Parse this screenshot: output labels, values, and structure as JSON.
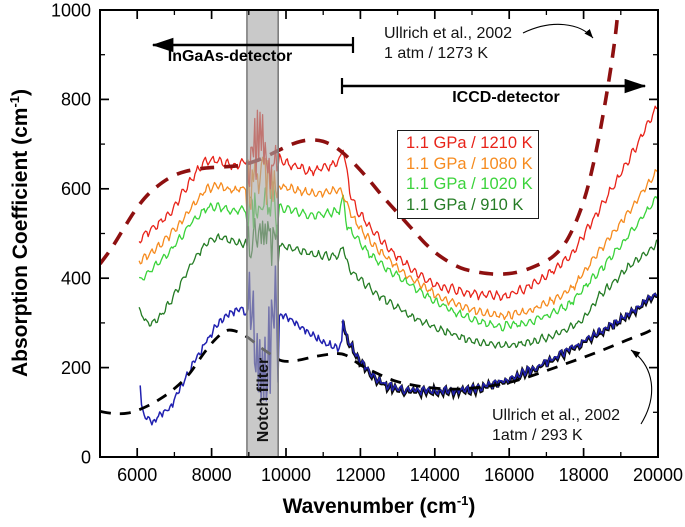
{
  "legend": {
    "items": [
      {
        "label": "1.1 GPa / 1210 K",
        "color": "#e82319"
      },
      {
        "label": "1.1 GPa / 1080 K",
        "color": "#f68b1f"
      },
      {
        "label": "1.1 GPa / 1020 K",
        "color": "#3bd33b"
      },
      {
        "label": "1.1 GPa / 910 K",
        "color": "#257c25"
      }
    ]
  },
  "annotations": {
    "ullrich_top": {
      "line1": "Ullrich et al., 2002",
      "line2": "1 atm / 1273 K"
    },
    "ullrich_bottom": {
      "line1": "Ullrich et al., 2002",
      "line2": "1atm / 293 K"
    }
  },
  "detectors": {
    "ingaas": "InGaAs-detector",
    "iccd": "ICCD-detector"
  },
  "chart_data": {
    "type": "line",
    "title": "",
    "x_axis": {
      "label": {
        "pre": "Wavenumber (cm",
        "sup": "-1",
        "post": ")"
      },
      "min": 5000,
      "max": 20000,
      "major_ticks": [
        6000,
        8000,
        10000,
        12000,
        14000,
        16000,
        18000,
        20000
      ],
      "minor_step": 1000
    },
    "y_axis": {
      "label": {
        "pre": "Absorption Coefficient (cm",
        "sup": "-1",
        "post": ")"
      },
      "min": 0,
      "max": 1000,
      "major_ticks": [
        0,
        200,
        400,
        600,
        800,
        1000
      ],
      "minor_step": 100
    },
    "notch_filter": {
      "label": "Notch filter",
      "from": 8950,
      "to": 9790,
      "band_color": "#a8a8a8"
    },
    "series": [
      {
        "name": "1.1 GPa / 910 K",
        "type": "noisy",
        "color": "#257c25",
        "width": 1.3,
        "fringe_amp": 7,
        "fringe_period": 7.2,
        "rand_amp": 4,
        "notch_amp": 45,
        "points": [
          [
            6050,
            332
          ],
          [
            6200,
            306
          ],
          [
            6400,
            298
          ],
          [
            6700,
            322
          ],
          [
            7000,
            362
          ],
          [
            7300,
            408
          ],
          [
            7600,
            452
          ],
          [
            7900,
            482
          ],
          [
            8200,
            492
          ],
          [
            8600,
            480
          ],
          [
            8950,
            478
          ],
          [
            9350,
            492
          ],
          [
            9790,
            476
          ],
          [
            10200,
            466
          ],
          [
            10700,
            454
          ],
          [
            11100,
            449
          ],
          [
            11440,
            452
          ],
          [
            11540,
            474
          ],
          [
            11650,
            428
          ],
          [
            11900,
            404
          ],
          [
            12300,
            374
          ],
          [
            12800,
            344
          ],
          [
            13400,
            314
          ],
          [
            14000,
            289
          ],
          [
            14700,
            267
          ],
          [
            15300,
            254
          ],
          [
            15900,
            249
          ],
          [
            16500,
            255
          ],
          [
            17200,
            272
          ],
          [
            17900,
            300
          ],
          [
            18440,
            362
          ],
          [
            19250,
            428
          ],
          [
            20000,
            478
          ]
        ]
      },
      {
        "name": "1.1 GPa / 1020 K",
        "type": "noisy",
        "color": "#3bd33b",
        "width": 1.3,
        "fringe_amp": 7,
        "fringe_period": 7.8,
        "rand_amp": 4,
        "notch_amp": 55,
        "points": [
          [
            6050,
            396
          ],
          [
            6350,
            418
          ],
          [
            6700,
            445
          ],
          [
            7100,
            484
          ],
          [
            7500,
            530
          ],
          [
            7850,
            556
          ],
          [
            8150,
            560
          ],
          [
            8550,
            550
          ],
          [
            8950,
            554
          ],
          [
            9350,
            572
          ],
          [
            9790,
            560
          ],
          [
            10150,
            552
          ],
          [
            10650,
            540
          ],
          [
            11050,
            544
          ],
          [
            11440,
            552
          ],
          [
            11530,
            582
          ],
          [
            11630,
            520
          ],
          [
            11850,
            492
          ],
          [
            12200,
            458
          ],
          [
            12700,
            422
          ],
          [
            13300,
            388
          ],
          [
            13900,
            352
          ],
          [
            14600,
            322
          ],
          [
            15200,
            302
          ],
          [
            15800,
            292
          ],
          [
            16400,
            298
          ],
          [
            17000,
            315
          ],
          [
            17600,
            340
          ],
          [
            18440,
            418
          ],
          [
            19250,
            500
          ],
          [
            20000,
            582
          ]
        ]
      },
      {
        "name": "1.1 GPa / 1080 K",
        "type": "noisy",
        "color": "#f68b1f",
        "width": 1.3,
        "fringe_amp": 7,
        "fringe_period": 7.0,
        "rand_amp": 4,
        "notch_amp": 55,
        "points": [
          [
            6050,
            436
          ],
          [
            6350,
            455
          ],
          [
            6700,
            480
          ],
          [
            7100,
            518
          ],
          [
            7500,
            562
          ],
          [
            7850,
            600
          ],
          [
            8150,
            606
          ],
          [
            8500,
            596
          ],
          [
            8950,
            602
          ],
          [
            9350,
            622
          ],
          [
            9790,
            606
          ],
          [
            10150,
            600
          ],
          [
            10650,
            590
          ],
          [
            11050,
            592
          ],
          [
            11440,
            597
          ],
          [
            11610,
            572
          ],
          [
            11800,
            536
          ],
          [
            12100,
            500
          ],
          [
            12500,
            462
          ],
          [
            13000,
            424
          ],
          [
            13500,
            392
          ],
          [
            14100,
            360
          ],
          [
            14700,
            336
          ],
          [
            15300,
            322
          ],
          [
            15900,
            316
          ],
          [
            16500,
            325
          ],
          [
            17100,
            348
          ],
          [
            17700,
            378
          ],
          [
            18440,
            463
          ],
          [
            19250,
            553
          ],
          [
            20000,
            645
          ]
        ]
      },
      {
        "name": "1.1 GPa / 1210 K",
        "type": "noisy",
        "color": "#e82319",
        "width": 1.3,
        "fringe_amp": 8,
        "fringe_period": 7.5,
        "rand_amp": 4,
        "notch_amp": 85,
        "points": [
          [
            6050,
            485
          ],
          [
            6300,
            505
          ],
          [
            6600,
            522
          ],
          [
            6900,
            548
          ],
          [
            7200,
            588
          ],
          [
            7500,
            628
          ],
          [
            7800,
            660
          ],
          [
            8100,
            666
          ],
          [
            8400,
            656
          ],
          [
            8700,
            652
          ],
          [
            8950,
            665
          ],
          [
            9350,
            700
          ],
          [
            9790,
            668
          ],
          [
            10050,
            655
          ],
          [
            10350,
            650
          ],
          [
            10650,
            638
          ],
          [
            10950,
            645
          ],
          [
            11250,
            652
          ],
          [
            11440,
            662
          ],
          [
            11530,
            696
          ],
          [
            11610,
            650
          ],
          [
            11720,
            590
          ],
          [
            11900,
            553
          ],
          [
            12200,
            520
          ],
          [
            12600,
            480
          ],
          [
            13000,
            446
          ],
          [
            13500,
            412
          ],
          [
            14000,
            386
          ],
          [
            14700,
            370
          ],
          [
            15300,
            362
          ],
          [
            15900,
            360
          ],
          [
            16500,
            380
          ],
          [
            17100,
            412
          ],
          [
            17700,
            455
          ],
          [
            18440,
            555
          ],
          [
            19200,
            662
          ],
          [
            20000,
            788
          ]
        ]
      },
      {
        "name": "blue-spectrum",
        "type": "noisy",
        "color": "#2121b0",
        "width": 1.5,
        "fringe_amp": 6,
        "fringe_period": 5.5,
        "rand_amp": 5,
        "notch_amp": 155,
        "shadow": true,
        "shadow_from": 11500,
        "points": [
          [
            6080,
            168
          ],
          [
            6130,
            102
          ],
          [
            6260,
            88
          ],
          [
            6420,
            79
          ],
          [
            6560,
            92
          ],
          [
            6700,
            100
          ],
          [
            6860,
            108
          ],
          [
            7020,
            130
          ],
          [
            7220,
            162
          ],
          [
            7420,
            196
          ],
          [
            7620,
            224
          ],
          [
            7820,
            252
          ],
          [
            8020,
            280
          ],
          [
            8220,
            302
          ],
          [
            8420,
            318
          ],
          [
            8620,
            328
          ],
          [
            8820,
            330
          ],
          [
            8950,
            322
          ],
          [
            9200,
            210
          ],
          [
            9500,
            200
          ],
          [
            9790,
            318
          ],
          [
            10050,
            310
          ],
          [
            10350,
            296
          ],
          [
            10650,
            276
          ],
          [
            10950,
            260
          ],
          [
            11250,
            248
          ],
          [
            11430,
            246
          ],
          [
            11500,
            255
          ],
          [
            11535,
            322
          ],
          [
            11580,
            278
          ],
          [
            11680,
            260
          ],
          [
            11820,
            238
          ],
          [
            12020,
            212
          ],
          [
            12320,
            184
          ],
          [
            12620,
            164
          ],
          [
            13000,
            152
          ],
          [
            13500,
            148
          ],
          [
            14000,
            147
          ],
          [
            14500,
            148
          ],
          [
            15000,
            152
          ],
          [
            15500,
            161
          ],
          [
            16000,
            175
          ],
          [
            16500,
            192
          ],
          [
            17000,
            213
          ],
          [
            17500,
            236
          ],
          [
            18000,
            258
          ],
          [
            18500,
            283
          ],
          [
            19000,
            308
          ],
          [
            19500,
            336
          ],
          [
            20000,
            368
          ]
        ]
      },
      {
        "name": "Ullrich et al., 2002 — 1 atm / 1273 K",
        "type": "dashed",
        "color": "#8e1010",
        "width": 3.6,
        "dash": "14 10",
        "points": [
          [
            5000,
            432
          ],
          [
            5300,
            466
          ],
          [
            5600,
            506
          ],
          [
            5900,
            546
          ],
          [
            6200,
            579
          ],
          [
            6500,
            603
          ],
          [
            6900,
            626
          ],
          [
            7300,
            639
          ],
          [
            7800,
            646
          ],
          [
            8300,
            649
          ],
          [
            8800,
            653
          ],
          [
            9300,
            666
          ],
          [
            9800,
            686
          ],
          [
            10200,
            701
          ],
          [
            10600,
            709
          ],
          [
            11000,
            706
          ],
          [
            11400,
            689
          ],
          [
            11800,
            659
          ],
          [
            12200,
            623
          ],
          [
            12600,
            583
          ],
          [
            13000,
            546
          ],
          [
            13400,
            509
          ],
          [
            13800,
            473
          ],
          [
            14200,
            446
          ],
          [
            14700,
            423
          ],
          [
            15200,
            413
          ],
          [
            15700,
            409
          ],
          [
            16200,
            413
          ],
          [
            16700,
            427
          ],
          [
            17200,
            450
          ],
          [
            17600,
            492
          ],
          [
            18000,
            572
          ],
          [
            18300,
            670
          ],
          [
            18600,
            802
          ],
          [
            18850,
            940
          ],
          [
            19000,
            1070
          ]
        ]
      },
      {
        "name": "Ullrich et al., 2002 — 1atm / 293 K",
        "type": "dashed",
        "color": "#000000",
        "width": 2.8,
        "dash": "11 9",
        "points": [
          [
            5000,
            102
          ],
          [
            5400,
            97
          ],
          [
            5800,
            99
          ],
          [
            6200,
            111
          ],
          [
            6600,
            129
          ],
          [
            7000,
            153
          ],
          [
            7400,
            186
          ],
          [
            7800,
            233
          ],
          [
            8100,
            263
          ],
          [
            8400,
            283
          ],
          [
            8700,
            280
          ],
          [
            9000,
            266
          ],
          [
            9300,
            246
          ],
          [
            9600,
            229
          ],
          [
            9900,
            215
          ],
          [
            10300,
            216
          ],
          [
            10800,
            225
          ],
          [
            11300,
            231
          ],
          [
            11600,
            228
          ],
          [
            12000,
            206
          ],
          [
            12400,
            189
          ],
          [
            12900,
            171
          ],
          [
            13400,
            161
          ],
          [
            14000,
            154
          ],
          [
            14600,
            152
          ],
          [
            15200,
            156
          ],
          [
            15800,
            163
          ],
          [
            16400,
            176
          ],
          [
            17000,
            193
          ],
          [
            17600,
            211
          ],
          [
            18200,
            229
          ],
          [
            18800,
            249
          ],
          [
            19300,
            266
          ],
          [
            19700,
            279
          ],
          [
            20000,
            293
          ]
        ]
      }
    ]
  }
}
